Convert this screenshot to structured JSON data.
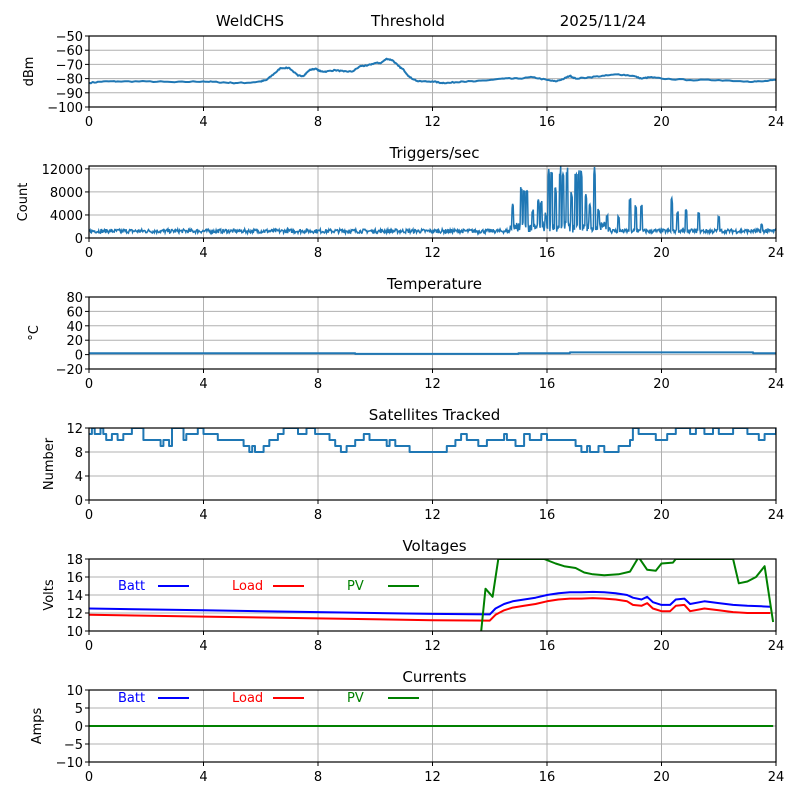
{
  "header": {
    "station": "WeldCHS",
    "label": "Threshold",
    "date": "2025/11/24"
  },
  "chart_data": [
    {
      "id": "threshold",
      "type": "line",
      "title": "",
      "xlabel": "",
      "ylabel": "dBm",
      "xlim": [
        0,
        24
      ],
      "ylim": [
        -100,
        -50
      ],
      "xticks": [
        0,
        4,
        8,
        12,
        16,
        20,
        24
      ],
      "yticks": [
        -100,
        -90,
        -80,
        -70,
        -60,
        -50
      ],
      "ytick_labels": [
        "−100",
        "−90",
        "−80",
        "−70",
        "−60",
        "−50"
      ],
      "grid": true,
      "series": [
        {
          "name": "Threshold",
          "color": "#1f77b4",
          "x": [
            0,
            0.5,
            1,
            2,
            3,
            4,
            4.5,
            5,
            5.5,
            6,
            6.2,
            6.5,
            6.7,
            7.0,
            7.3,
            7.5,
            7.7,
            7.9,
            8.1,
            8.3,
            8.6,
            8.9,
            9.2,
            9.5,
            9.7,
            10.0,
            10.2,
            10.4,
            10.6,
            10.8,
            11.0,
            11.2,
            11.5,
            12.0,
            12.3,
            12.6,
            13.0,
            13.5,
            14.0,
            14.5,
            15.0,
            15.5,
            16.0,
            16.3,
            16.6,
            16.8,
            17.0,
            17.5,
            18.0,
            18.5,
            19.0,
            19.3,
            19.6,
            20.0,
            21.0,
            22.0,
            23.0,
            23.5,
            24
          ],
          "y": [
            -83,
            -82,
            -82,
            -82,
            -82.5,
            -82,
            -82.5,
            -83,
            -83,
            -82,
            -81,
            -76,
            -72.5,
            -72.5,
            -78,
            -78,
            -74,
            -73,
            -75,
            -75,
            -74,
            -75,
            -75,
            -71,
            -71,
            -69,
            -69,
            -66,
            -67,
            -71,
            -74,
            -79,
            -82,
            -82,
            -83,
            -83,
            -82,
            -82,
            -81,
            -80,
            -80,
            -79,
            -81,
            -82,
            -80,
            -78,
            -80,
            -79,
            -78,
            -77,
            -78,
            -80,
            -79,
            -80,
            -81,
            -81,
            -82,
            -82,
            -81
          ]
        }
      ]
    },
    {
      "id": "triggers",
      "type": "line",
      "title": "Triggers/sec",
      "xlabel": "",
      "ylabel": "Count",
      "xlim": [
        0,
        24
      ],
      "ylim": [
        0,
        12500
      ],
      "xticks": [
        0,
        4,
        8,
        12,
        16,
        20,
        24
      ],
      "yticks": [
        0,
        4000,
        8000,
        12000
      ],
      "ytick_labels": [
        "0",
        "4000",
        "8000",
        "12000"
      ],
      "grid": true,
      "baseline": 1200,
      "spikes": [
        [
          14.8,
          6000
        ],
        [
          15.1,
          9000
        ],
        [
          15.2,
          8700
        ],
        [
          15.3,
          8500
        ],
        [
          15.5,
          5000
        ],
        [
          15.7,
          7000
        ],
        [
          15.8,
          6500
        ],
        [
          15.95,
          4500
        ],
        [
          16.05,
          12500
        ],
        [
          16.15,
          12500
        ],
        [
          16.3,
          9000
        ],
        [
          16.45,
          12500
        ],
        [
          16.55,
          12500
        ],
        [
          16.7,
          12500
        ],
        [
          16.85,
          8000
        ],
        [
          17.0,
          12500
        ],
        [
          17.1,
          12500
        ],
        [
          17.2,
          12000
        ],
        [
          17.35,
          8000
        ],
        [
          17.5,
          6000
        ],
        [
          17.65,
          12500
        ],
        [
          17.8,
          5500
        ],
        [
          18.1,
          4000
        ],
        [
          18.5,
          4000
        ],
        [
          18.9,
          7000
        ],
        [
          19.1,
          6000
        ],
        [
          19.3,
          6000
        ],
        [
          20.35,
          7000
        ],
        [
          20.55,
          5000
        ],
        [
          20.85,
          5000
        ],
        [
          21.3,
          4500
        ],
        [
          22.0,
          4000
        ],
        [
          23.5,
          2500
        ]
      ],
      "series": [
        {
          "name": "Triggers/sec",
          "color": "#1f77b4"
        }
      ]
    },
    {
      "id": "temperature",
      "type": "line",
      "title": "Temperature",
      "xlabel": "",
      "ylabel": "°C",
      "xlim": [
        0,
        24
      ],
      "ylim": [
        -20,
        80
      ],
      "xticks": [
        0,
        4,
        8,
        12,
        16,
        20,
        24
      ],
      "yticks": [
        -20,
        0,
        20,
        40,
        60,
        80
      ],
      "ytick_labels": [
        "−20",
        "0",
        "20",
        "40",
        "60",
        "80"
      ],
      "grid": true,
      "series": [
        {
          "name": "Temperature",
          "color": "#1f77b4",
          "x": [
            0,
            9.3,
            9.3,
            15.0,
            15.0,
            16.8,
            16.8,
            23.2,
            23.2,
            24
          ],
          "y": [
            2,
            2,
            1,
            1,
            2,
            2,
            3,
            3,
            2,
            2
          ]
        }
      ]
    },
    {
      "id": "satellites",
      "type": "line",
      "title": "Satellites Tracked",
      "xlabel": "",
      "ylabel": "Number",
      "xlim": [
        0,
        24
      ],
      "ylim": [
        0,
        12
      ],
      "xticks": [
        0,
        4,
        8,
        12,
        16,
        20,
        24
      ],
      "yticks": [
        0,
        4,
        8,
        12
      ],
      "ytick_labels": [
        "0",
        "4",
        "8",
        "12"
      ],
      "grid": true,
      "series": [
        {
          "name": "Satellites",
          "color": "#1f77b4",
          "step": true,
          "x": [
            0,
            0.1,
            0.2,
            0.4,
            0.5,
            0.6,
            0.8,
            1.0,
            1.2,
            1.5,
            1.9,
            2.5,
            2.6,
            2.8,
            2.9,
            3.3,
            3.4,
            3.8,
            4.0,
            4.5,
            5.0,
            5.4,
            5.6,
            5.7,
            5.8,
            6.1,
            6.3,
            6.6,
            6.8,
            7.0,
            7.3,
            7.6,
            7.9,
            8.1,
            8.4,
            8.6,
            8.8,
            9.0,
            9.3,
            9.6,
            9.8,
            10.0,
            10.4,
            10.5,
            10.7,
            11.0,
            11.2,
            11.5,
            11.8,
            12.0,
            12.4,
            12.5,
            12.8,
            13.0,
            13.2,
            13.6,
            13.9,
            14.2,
            14.5,
            14.6,
            14.9,
            15.2,
            15.4,
            15.8,
            16.0,
            16.5,
            17.0,
            17.2,
            17.4,
            17.5,
            17.8,
            18.0,
            18.5,
            18.9,
            19.0,
            19.2,
            19.5,
            19.8,
            20.2,
            20.5,
            20.8,
            21.0,
            21.2,
            21.5,
            21.8,
            22.0,
            22.5,
            23.0,
            23.4,
            23.6,
            24
          ],
          "y": [
            11,
            12,
            11,
            12,
            11,
            10,
            11,
            10,
            11,
            12,
            10,
            9,
            10,
            9,
            12,
            10,
            11,
            12,
            11,
            10,
            10,
            9,
            8,
            9,
            8,
            9,
            10,
            11,
            12,
            12,
            11,
            12,
            11,
            11,
            10,
            9,
            8,
            9,
            10,
            11,
            10,
            10,
            9,
            10,
            9,
            9,
            8,
            8,
            8,
            8,
            8,
            9,
            10,
            11,
            10,
            9,
            10,
            10,
            11,
            10,
            9,
            11,
            10,
            11,
            10,
            10,
            9,
            8,
            9,
            8,
            9,
            8,
            9,
            10,
            12,
            11,
            11,
            10,
            11,
            12,
            12,
            11,
            12,
            11,
            12,
            11,
            12,
            11,
            10,
            11,
            12
          ]
        }
      ]
    },
    {
      "id": "voltages",
      "type": "line",
      "title": "Voltages",
      "xlabel": "",
      "ylabel": "Volts",
      "xlim": [
        0,
        24
      ],
      "ylim": [
        10,
        18
      ],
      "xticks": [
        0,
        4,
        8,
        12,
        16,
        20,
        24
      ],
      "yticks": [
        10,
        12,
        14,
        16,
        18
      ],
      "ytick_labels": [
        "10",
        "12",
        "14",
        "16",
        "18"
      ],
      "grid": true,
      "legend": "top-left inline",
      "series": [
        {
          "name": "Batt",
          "color": "#0000ff",
          "x": [
            0,
            4,
            8,
            12,
            14.0,
            14.2,
            14.5,
            14.8,
            15.2,
            15.6,
            16.0,
            16.4,
            16.8,
            17.2,
            17.6,
            18.0,
            18.4,
            18.8,
            19.0,
            19.3,
            19.5,
            19.7,
            20.0,
            20.3,
            20.5,
            20.8,
            21.0,
            21.5,
            22.0,
            22.5,
            23.0,
            23.5,
            23.8
          ],
          "y": [
            12.5,
            12.3,
            12.1,
            11.9,
            11.85,
            12.5,
            13.0,
            13.3,
            13.5,
            13.7,
            14.0,
            14.2,
            14.3,
            14.3,
            14.35,
            14.3,
            14.2,
            14.0,
            13.7,
            13.5,
            13.8,
            13.2,
            12.9,
            12.9,
            13.5,
            13.6,
            13.0,
            13.3,
            13.1,
            12.9,
            12.8,
            12.75,
            12.7
          ]
        },
        {
          "name": "Load",
          "color": "#ff0000",
          "x": [
            0,
            4,
            8,
            12,
            14.0,
            14.2,
            14.5,
            14.8,
            15.2,
            15.6,
            16.0,
            16.4,
            16.8,
            17.2,
            17.6,
            18.0,
            18.4,
            18.8,
            19.0,
            19.3,
            19.5,
            19.7,
            20.0,
            20.3,
            20.5,
            20.8,
            21.0,
            21.5,
            22.0,
            22.5,
            23.0,
            23.5,
            23.8
          ],
          "y": [
            11.8,
            11.6,
            11.4,
            11.2,
            11.15,
            11.8,
            12.3,
            12.6,
            12.8,
            13.0,
            13.3,
            13.5,
            13.6,
            13.6,
            13.65,
            13.6,
            13.5,
            13.3,
            12.9,
            12.8,
            13.1,
            12.5,
            12.2,
            12.2,
            12.8,
            12.9,
            12.2,
            12.5,
            12.3,
            12.1,
            12.0,
            12.0,
            12.0
          ]
        },
        {
          "name": "PV",
          "color": "#008000",
          "x": [
            13.7,
            13.85,
            14.1,
            14.3,
            15.9,
            16.3,
            16.6,
            17.0,
            17.3,
            17.6,
            18.0,
            18.5,
            18.9,
            19.2,
            19.5,
            19.8,
            20.0,
            20.4,
            20.5,
            22.5,
            22.7,
            23.0,
            23.3,
            23.6,
            23.9
          ],
          "y": [
            10,
            14.7,
            13.8,
            18,
            18,
            17.5,
            17.2,
            17,
            16.5,
            16.3,
            16.2,
            16.3,
            16.6,
            18.2,
            16.8,
            16.7,
            17.5,
            17.6,
            18,
            18,
            15.3,
            15.5,
            16.0,
            17.2,
            11
          ]
        }
      ]
    },
    {
      "id": "currents",
      "type": "line",
      "title": "Currents",
      "xlabel": "",
      "ylabel": "Amps",
      "xlim": [
        0,
        24
      ],
      "ylim": [
        -10,
        10
      ],
      "xticks": [
        0,
        4,
        8,
        12,
        16,
        20,
        24
      ],
      "yticks": [
        -10,
        -5,
        0,
        5,
        10
      ],
      "ytick_labels": [
        "−10",
        "−5",
        "0",
        "5",
        "10"
      ],
      "grid": true,
      "legend": "top-left inline",
      "series": [
        {
          "name": "Batt",
          "color": "#0000ff",
          "x": [
            0,
            23.9
          ],
          "y": [
            0,
            0
          ]
        },
        {
          "name": "Load",
          "color": "#ff0000",
          "x": [
            0,
            23.9
          ],
          "y": [
            0,
            0
          ]
        },
        {
          "name": "PV",
          "color": "#008000",
          "x": [
            0,
            23.9
          ],
          "y": [
            0,
            0
          ]
        }
      ]
    }
  ]
}
